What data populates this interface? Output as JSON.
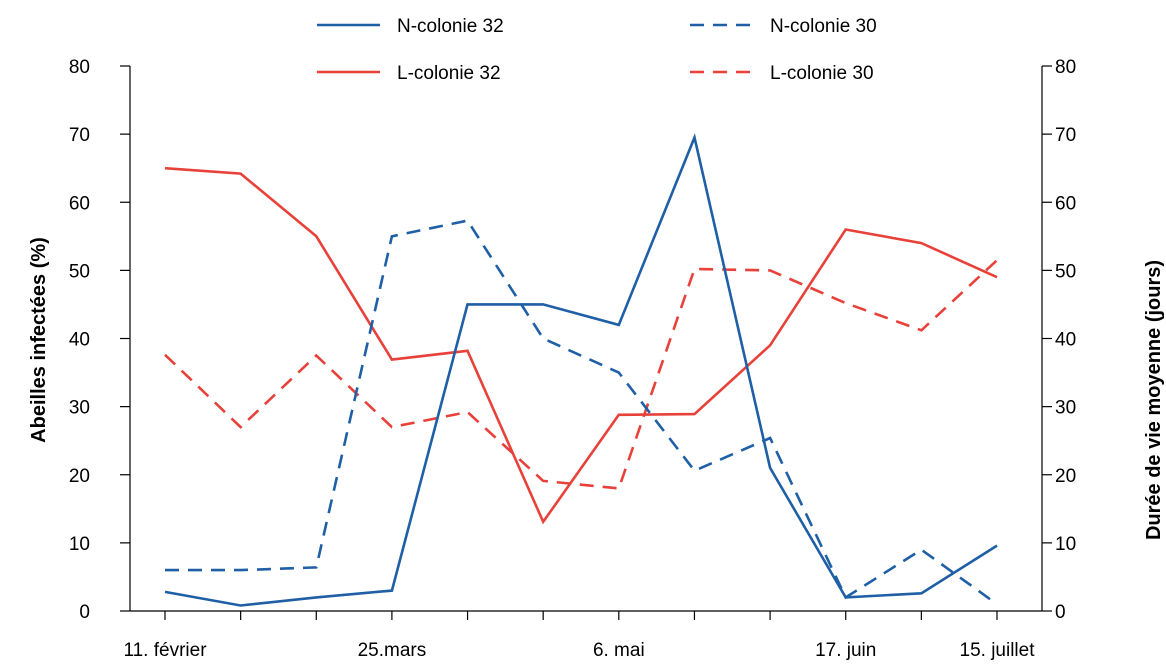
{
  "chart_data": {
    "type": "line",
    "categories": [
      "11. février",
      "",
      "",
      "25.mars",
      "",
      "",
      "6. mai",
      "",
      "",
      "17. juin",
      "",
      "15. juillet"
    ],
    "ylabel_left": "Abeilles infectées (%)",
    "ylabel_right": "Durée de vie moyenne (jours)",
    "ylim_left": [
      0,
      80
    ],
    "ylim_right": [
      0,
      80
    ],
    "yticks": [
      0,
      10,
      20,
      30,
      40,
      50,
      60,
      70,
      80
    ],
    "legend_position": "top-center",
    "grid": false,
    "series": [
      {
        "name": "N-colonie 32",
        "color": "#1f5fa6",
        "dash": "solid",
        "values": [
          2.8,
          0.8,
          2.0,
          3.0,
          45,
          45,
          42,
          69.5,
          21,
          2.0,
          2.6,
          9.6
        ]
      },
      {
        "name": "N-colonie 30",
        "color": "#1f5fa6",
        "dash": "dashed",
        "values": [
          6,
          6,
          6.4,
          55,
          57.3,
          40,
          35,
          20.6,
          25.4,
          2.0,
          9.0,
          1.0
        ]
      },
      {
        "name": "L-colonie 32",
        "color": "#e8413a",
        "dash": "solid",
        "values": [
          65,
          64.2,
          55,
          36.9,
          38.2,
          13.1,
          28.8,
          28.9,
          39,
          56,
          54,
          49
        ]
      },
      {
        "name": "L-colonie 30",
        "color": "#e8413a",
        "dash": "dashed",
        "values": [
          37.6,
          27,
          37.5,
          27,
          29.2,
          19.1,
          18,
          50.2,
          50,
          45.2,
          41.2,
          51.5
        ]
      }
    ]
  }
}
